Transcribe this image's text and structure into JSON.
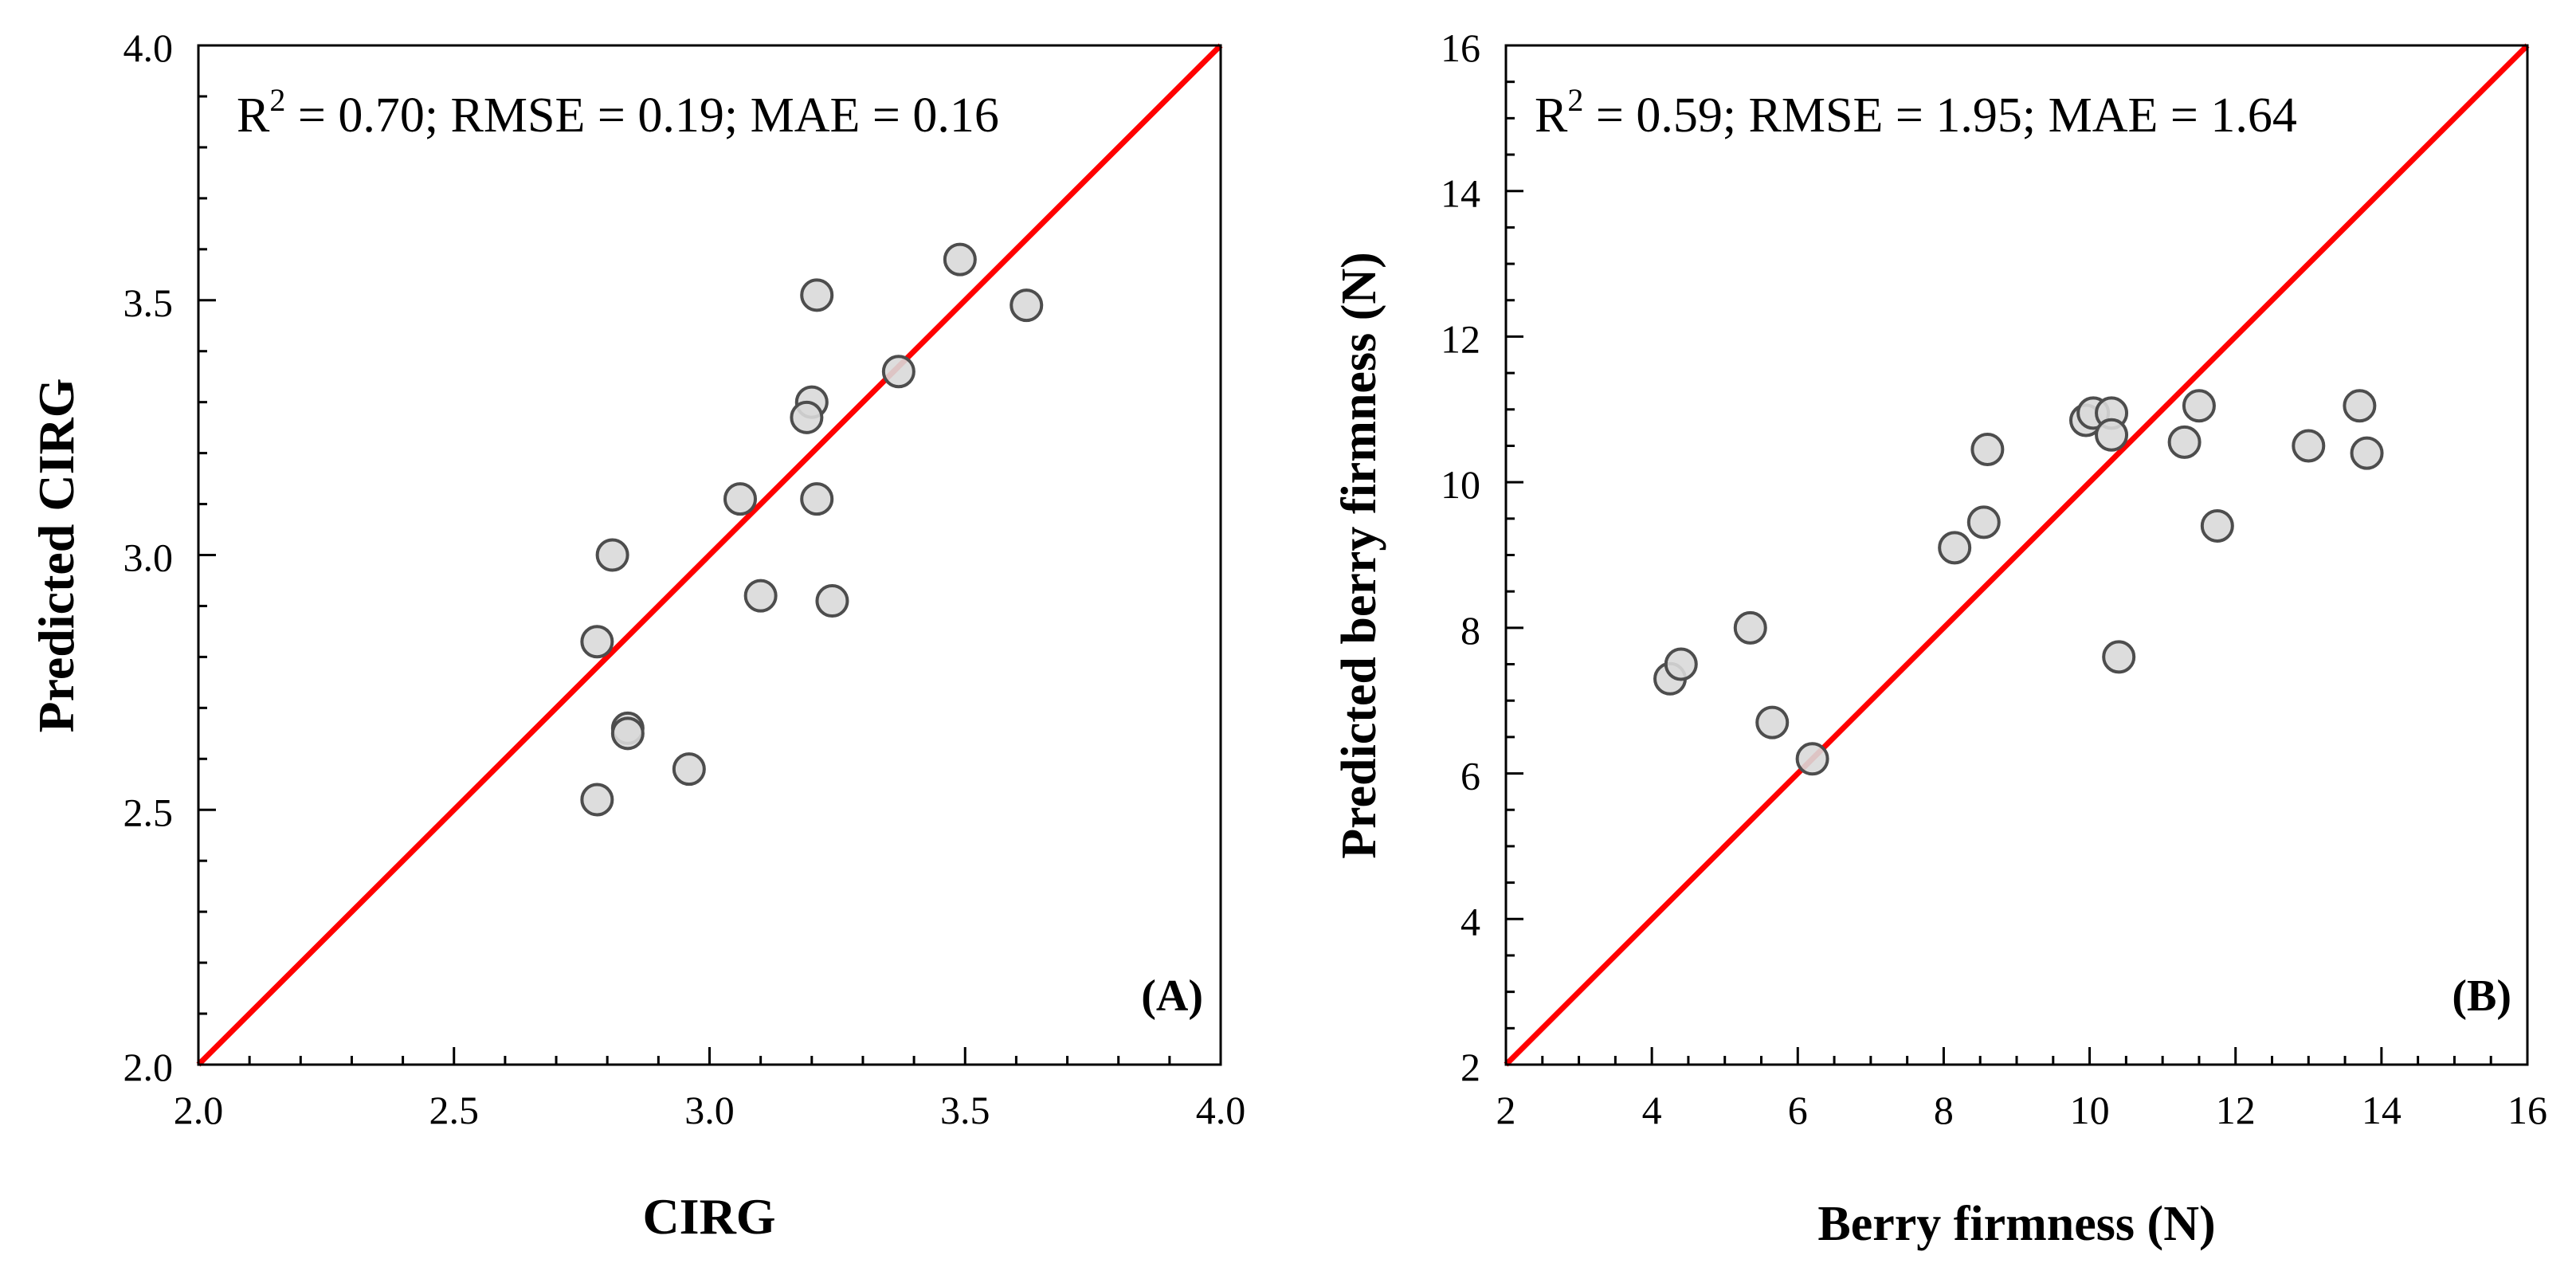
{
  "colors": {
    "identity_line": "#ff0000",
    "marker_fill": "#d9d9d9",
    "marker_stroke": "#4d4d4d",
    "axis": "#000000"
  },
  "chart_data": [
    {
      "type": "scatter",
      "panel_label": "(A)",
      "title": "",
      "xlabel": "CIRG",
      "ylabel": "Predicted CIRG",
      "xlim": [
        2.0,
        4.0
      ],
      "ylim": [
        2.0,
        4.0
      ],
      "x_ticks": [
        "2.0",
        "2.5",
        "3.0",
        "3.5",
        "4.0"
      ],
      "y_ticks": [
        "2.0",
        "2.5",
        "3.0",
        "3.5",
        "4.0"
      ],
      "annotation": {
        "r2_prefix": "R",
        "r2_superscript": "2",
        "text": " = 0.70; RMSE = 0.19; MAE = 0.16"
      },
      "identity_line": [
        [
          2.0,
          2.0
        ],
        [
          4.0,
          4.0
        ]
      ],
      "x": [
        3.49,
        3.62,
        3.21,
        3.37,
        3.2,
        3.19,
        3.06,
        3.21,
        2.81,
        3.1,
        3.24,
        2.78,
        2.84,
        2.84,
        2.96,
        2.78
      ],
      "y": [
        3.58,
        3.49,
        3.51,
        3.36,
        3.3,
        3.27,
        3.11,
        3.11,
        3.0,
        2.92,
        2.91,
        2.83,
        2.66,
        2.65,
        2.58,
        2.52
      ]
    },
    {
      "type": "scatter",
      "panel_label": "(B)",
      "title": "",
      "xlabel": "Berry firmness (N)",
      "ylabel": "Predicted berry firmness (N)",
      "xlim": [
        2,
        16
      ],
      "ylim": [
        2,
        16
      ],
      "x_ticks": [
        "2",
        "4",
        "6",
        "8",
        "10",
        "12",
        "14",
        "16"
      ],
      "y_ticks": [
        "2",
        "4",
        "6",
        "8",
        "10",
        "12",
        "14",
        "16"
      ],
      "annotation": {
        "r2_prefix": "R",
        "r2_superscript": "2",
        "text": " = 0.59; RMSE = 1.95; MAE = 1.64"
      },
      "identity_line": [
        [
          2,
          2
        ],
        [
          16,
          16
        ]
      ],
      "x": [
        4.25,
        4.4,
        5.35,
        5.65,
        6.2,
        8.15,
        8.55,
        8.6,
        9.95,
        10.05,
        10.3,
        10.3,
        10.4,
        11.3,
        11.5,
        11.75,
        13.0,
        13.7,
        13.8
      ],
      "y": [
        7.3,
        7.5,
        8.0,
        6.7,
        6.2,
        9.1,
        9.45,
        10.45,
        10.85,
        10.95,
        10.95,
        10.65,
        7.6,
        10.55,
        11.05,
        9.4,
        10.5,
        11.05,
        10.4
      ]
    }
  ]
}
